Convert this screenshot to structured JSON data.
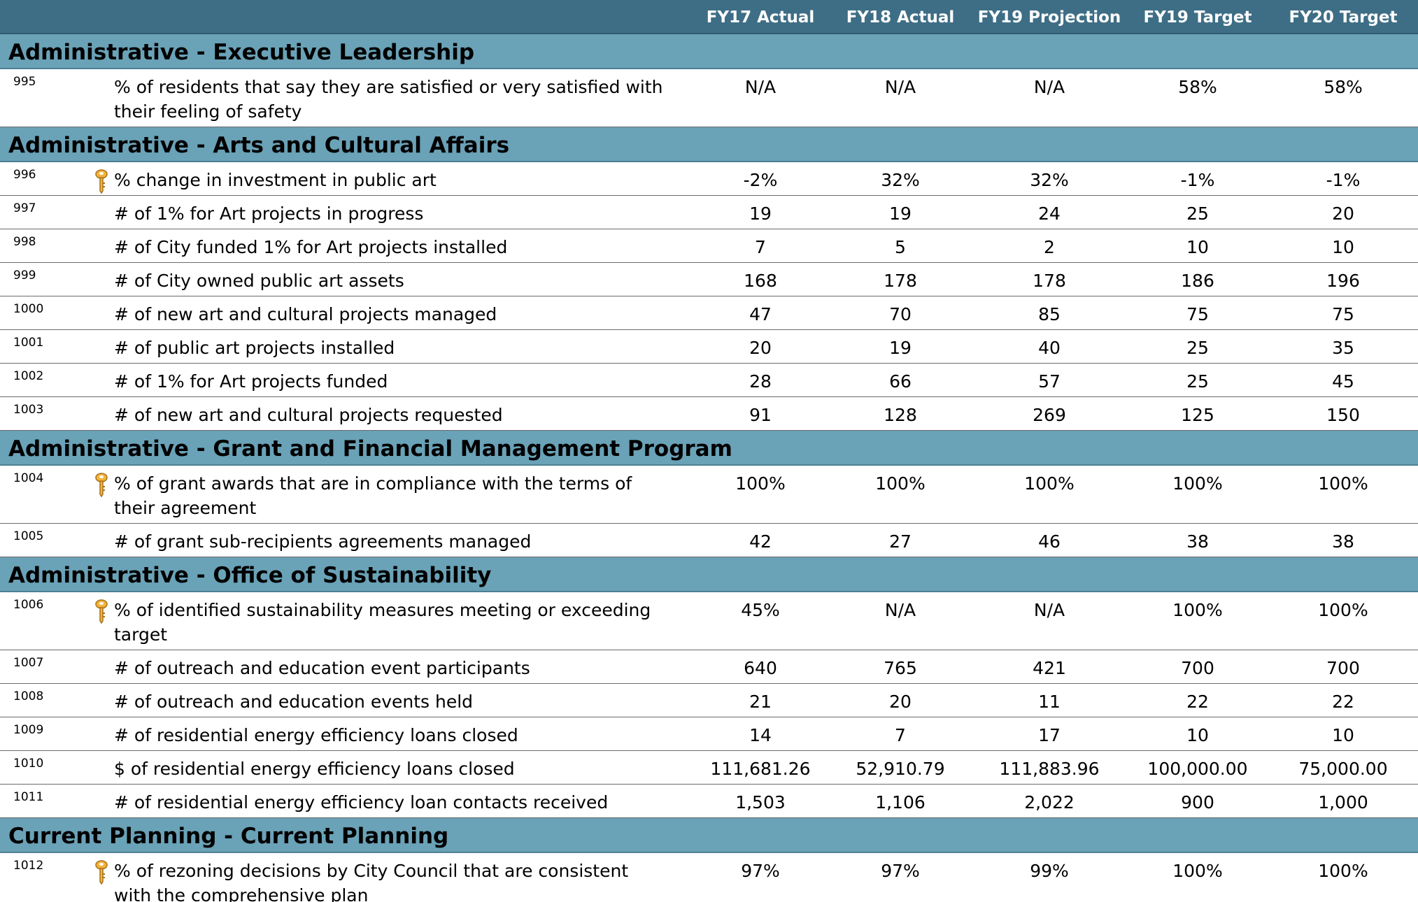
{
  "header": {
    "columns": [
      "FY17 Actual",
      "FY18 Actual",
      "FY19 Projection",
      "FY19 Target",
      "FY20 Target"
    ]
  },
  "sections": [
    {
      "title": "Administrative - Executive Leadership",
      "rows": [
        {
          "id": "995",
          "measure": "% of residents that say they are satisfied or very satisfied with their feeling of safety",
          "values": [
            "N/A",
            "N/A",
            "N/A",
            "58%",
            "58%"
          ]
        }
      ]
    },
    {
      "title": "Administrative - Arts and Cultural Affairs",
      "rows": [
        {
          "id": "996",
          "key": true,
          "measure": "% change in investment in public art",
          "values": [
            "-2%",
            "32%",
            "32%",
            "-1%",
            "-1%"
          ]
        },
        {
          "id": "997",
          "measure": "# of 1% for Art projects in progress",
          "values": [
            "19",
            "19",
            "24",
            "25",
            "20"
          ]
        },
        {
          "id": "998",
          "measure": "# of City funded 1% for Art projects installed",
          "values": [
            "7",
            "5",
            "2",
            "10",
            "10"
          ]
        },
        {
          "id": "999",
          "measure": "# of City owned public art assets",
          "values": [
            "168",
            "178",
            "178",
            "186",
            "196"
          ]
        },
        {
          "id": "1000",
          "measure": "# of new art and cultural projects managed",
          "values": [
            "47",
            "70",
            "85",
            "75",
            "75"
          ]
        },
        {
          "id": "1001",
          "measure": "# of public art projects installed",
          "values": [
            "20",
            "19",
            "40",
            "25",
            "35"
          ]
        },
        {
          "id": "1002",
          "measure": "# of 1% for Art projects funded",
          "values": [
            "28",
            "66",
            "57",
            "25",
            "45"
          ]
        },
        {
          "id": "1003",
          "measure": "# of new art and cultural projects requested",
          "values": [
            "91",
            "128",
            "269",
            "125",
            "150"
          ]
        }
      ]
    },
    {
      "title": "Administrative - Grant and Financial Management Program",
      "rows": [
        {
          "id": "1004",
          "key": true,
          "measure": "% of grant awards that are in compliance with the terms of their agreement",
          "values": [
            "100%",
            "100%",
            "100%",
            "100%",
            "100%"
          ]
        },
        {
          "id": "1005",
          "measure": "# of grant sub-recipients agreements managed",
          "values": [
            "42",
            "27",
            "46",
            "38",
            "38"
          ]
        }
      ]
    },
    {
      "title": "Administrative - Office of Sustainability",
      "rows": [
        {
          "id": "1006",
          "key": true,
          "measure": "% of identified sustainability measures meeting or exceeding target",
          "values": [
            "45%",
            "N/A",
            "N/A",
            "100%",
            "100%"
          ]
        },
        {
          "id": "1007",
          "measure": "# of outreach and education event participants",
          "values": [
            "640",
            "765",
            "421",
            "700",
            "700"
          ]
        },
        {
          "id": "1008",
          "measure": "# of outreach and education events held",
          "values": [
            "21",
            "20",
            "11",
            "22",
            "22"
          ]
        },
        {
          "id": "1009",
          "measure": "# of residential energy efficiency loans closed",
          "values": [
            "14",
            "7",
            "17",
            "10",
            "10"
          ]
        },
        {
          "id": "1010",
          "measure": "$ of residential energy efficiency loans closed",
          "values": [
            "111,681.26",
            "52,910.79",
            "111,883.96",
            "100,000.00",
            "75,000.00"
          ]
        },
        {
          "id": "1011",
          "measure": "# of residential energy efficiency loan contacts received",
          "values": [
            "1,503",
            "1,106",
            "2,022",
            "900",
            "1,000"
          ]
        }
      ]
    },
    {
      "title": "Current Planning - Current Planning",
      "rows": [
        {
          "id": "1012",
          "key": true,
          "measure": "% of rezoning decisions by City Council that are consistent with the comprehensive plan",
          "values": [
            "97%",
            "97%",
            "99%",
            "100%",
            "100%"
          ]
        }
      ]
    }
  ]
}
